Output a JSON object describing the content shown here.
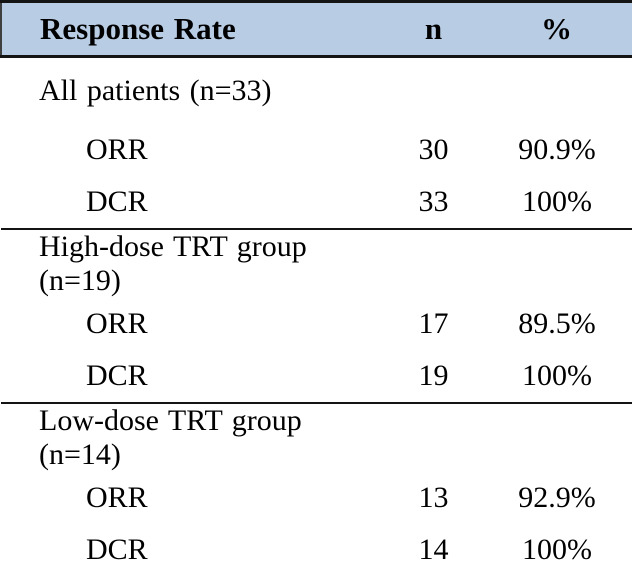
{
  "table": {
    "title_note": "Response rate table",
    "header": {
      "label": "Response Rate",
      "n": "n",
      "pct": "%"
    },
    "colors": {
      "header_bg": "#b8cce4",
      "rule": "#141414",
      "text": "#000000"
    },
    "sections": [
      {
        "group": "All patients (n=33)",
        "rows": [
          {
            "label": "ORR",
            "n": "30",
            "pct": "90.9%"
          },
          {
            "label": "DCR",
            "n": "33",
            "pct": "100%"
          }
        ]
      },
      {
        "group": "High-dose TRT group (n=19)",
        "rows": [
          {
            "label": "ORR",
            "n": "17",
            "pct": "89.5%"
          },
          {
            "label": "DCR",
            "n": "19",
            "pct": "100%"
          }
        ]
      },
      {
        "group": "Low-dose TRT group (n=14)",
        "rows": [
          {
            "label": "ORR",
            "n": "13",
            "pct": "92.9%"
          },
          {
            "label": "DCR",
            "n": "14",
            "pct": "100%"
          }
        ]
      }
    ]
  }
}
